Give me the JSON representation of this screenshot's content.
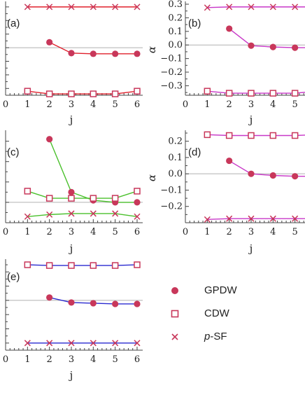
{
  "colors": {
    "marker": "#c8375a",
    "red": "#e0202c",
    "magenta": "#c838c8",
    "green": "#4ac02c",
    "blue": "#2a2ad0",
    "axis": "#444444",
    "zero_line": "#b0b0b0"
  },
  "legend": [
    {
      "symbol": "filled-circle",
      "label": "GPDW"
    },
    {
      "symbol": "open-square",
      "label": "CDW"
    },
    {
      "symbol": "cross",
      "label_italic": "p",
      "label_rest": "-SF"
    }
  ],
  "chart_data": [
    {
      "type": "line",
      "panel_label": "(a)",
      "xlabel": "j",
      "ylabel": "",
      "xlim": [
        0,
        6
      ],
      "x_ticks": [
        "0",
        "1",
        "2",
        "3",
        "4",
        "5",
        "6"
      ],
      "ylim": [
        -0.35,
        0.32
      ],
      "y_ticks": [],
      "line_color": "red",
      "series": [
        {
          "marker": "cross",
          "x": [
            1,
            2,
            3,
            4,
            5,
            6
          ],
          "y": [
            0.3,
            0.3,
            0.3,
            0.3,
            0.3,
            0.3
          ]
        },
        {
          "marker": "circle",
          "x": [
            2,
            3,
            4,
            5,
            6
          ],
          "y": [
            0.04,
            -0.04,
            -0.045,
            -0.045,
            -0.045
          ]
        },
        {
          "marker": "square",
          "x": [
            1,
            2,
            3,
            4,
            5,
            6
          ],
          "y": [
            -0.32,
            -0.34,
            -0.34,
            -0.34,
            -0.34,
            -0.32
          ]
        }
      ]
    },
    {
      "type": "line",
      "panel_label": "(b)",
      "xlabel": "j",
      "ylabel": "α",
      "xlim": [
        0,
        6
      ],
      "x_ticks": [
        "0",
        "1",
        "2",
        "3",
        "4",
        "5"
      ],
      "ylim": [
        -0.37,
        0.3
      ],
      "y_ticks": [
        "0.3",
        "0.2",
        "0.1",
        "0.0",
        "−0.1",
        "−0.2",
        "−0.3"
      ],
      "y_tick_values": [
        0.3,
        0.2,
        0.1,
        0.0,
        -0.1,
        -0.2,
        -0.3
      ],
      "line_color": "magenta",
      "series": [
        {
          "marker": "cross",
          "x": [
            1,
            2,
            3,
            4,
            5,
            6
          ],
          "y": [
            0.275,
            0.28,
            0.28,
            0.28,
            0.28,
            0.28
          ]
        },
        {
          "marker": "circle",
          "x": [
            2,
            3,
            4,
            5,
            6
          ],
          "y": [
            0.12,
            -0.005,
            -0.015,
            -0.02,
            -0.02
          ]
        },
        {
          "marker": "square",
          "x": [
            1,
            2,
            3,
            4,
            5,
            6
          ],
          "y": [
            -0.34,
            -0.355,
            -0.355,
            -0.355,
            -0.355,
            -0.34
          ]
        }
      ]
    },
    {
      "type": "line",
      "panel_label": "(c)",
      "xlabel": "j",
      "ylabel": "",
      "xlim": [
        0,
        6
      ],
      "x_ticks": [
        "0",
        "1",
        "2",
        "3",
        "4",
        "5",
        "6"
      ],
      "ylim": [
        -0.1,
        0.34
      ],
      "y_ticks": [],
      "line_color": "green",
      "series": [
        {
          "marker": "circle",
          "x": [
            2,
            3,
            4,
            5,
            6
          ],
          "y": [
            0.31,
            0.05,
            0.01,
            0.0,
            0.0
          ]
        },
        {
          "marker": "square",
          "x": [
            1,
            2,
            3,
            4,
            5,
            6
          ],
          "y": [
            0.055,
            0.02,
            0.02,
            0.02,
            0.02,
            0.055
          ]
        },
        {
          "marker": "cross",
          "x": [
            1,
            2,
            3,
            4,
            5,
            6
          ],
          "y": [
            -0.07,
            -0.06,
            -0.055,
            -0.055,
            -0.055,
            -0.07
          ]
        }
      ]
    },
    {
      "type": "line",
      "panel_label": "(d)",
      "xlabel": "j",
      "ylabel": "α",
      "xlim": [
        0,
        6
      ],
      "x_ticks": [
        "0",
        "1",
        "2",
        "3",
        "4",
        "5"
      ],
      "ylim": [
        -0.3,
        0.25
      ],
      "y_ticks": [
        "0.2",
        "0.1",
        "0.0",
        "−0.1",
        "−0.2"
      ],
      "y_tick_values": [
        0.2,
        0.1,
        0.0,
        -0.1,
        -0.2
      ],
      "line_color": "magenta",
      "series": [
        {
          "marker": "square",
          "x": [
            1,
            2,
            3,
            4,
            5,
            6
          ],
          "y": [
            0.24,
            0.235,
            0.235,
            0.235,
            0.235,
            0.24
          ]
        },
        {
          "marker": "circle",
          "x": [
            2,
            3,
            4,
            5,
            6
          ],
          "y": [
            0.08,
            0.0,
            -0.01,
            -0.015,
            -0.015
          ]
        },
        {
          "marker": "cross",
          "x": [
            1,
            2,
            3,
            4,
            5,
            6
          ],
          "y": [
            -0.28,
            -0.275,
            -0.275,
            -0.275,
            -0.275,
            -0.275
          ]
        }
      ]
    },
    {
      "type": "line",
      "panel_label": "(e)",
      "xlabel": "j",
      "ylabel": "",
      "xlim": [
        0,
        6
      ],
      "x_ticks": [
        "0",
        "1",
        "2",
        "3",
        "4",
        "5",
        "6"
      ],
      "ylim": [
        -0.35,
        0.27
      ],
      "y_ticks": [],
      "line_color": "blue",
      "series": [
        {
          "marker": "square",
          "x": [
            1,
            2,
            3,
            4,
            5,
            6
          ],
          "y": [
            0.25,
            0.245,
            0.245,
            0.245,
            0.245,
            0.25
          ]
        },
        {
          "marker": "circle",
          "x": [
            2,
            3,
            4,
            5,
            6
          ],
          "y": [
            0.02,
            -0.015,
            -0.02,
            -0.025,
            -0.025
          ]
        },
        {
          "marker": "cross",
          "x": [
            1,
            2,
            3,
            4,
            5,
            6
          ],
          "y": [
            -0.3,
            -0.3,
            -0.3,
            -0.3,
            -0.3,
            -0.3
          ]
        }
      ]
    }
  ]
}
